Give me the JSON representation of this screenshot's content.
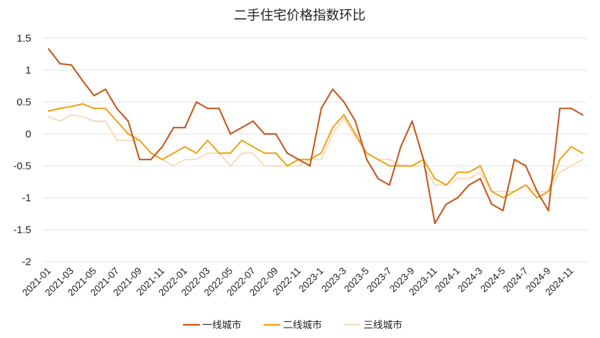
{
  "chart_data": {
    "type": "line",
    "title": "二手住宅价格指数环比",
    "xlabel": "",
    "ylabel": "",
    "ylim": [
      -2,
      1.5
    ],
    "yticks": [
      1.5,
      1,
      0.5,
      0,
      -0.5,
      -1,
      -1.5,
      -2
    ],
    "ytick_labels": [
      "1.5",
      "1",
      "0.5",
      "0",
      "-0.5",
      "-1",
      "-1.5",
      "-2"
    ],
    "grid": true,
    "legend_position": "bottom",
    "x": [
      "2021-01",
      "2021-02",
      "2021-03",
      "2021-04",
      "2021-05",
      "2021-06",
      "2021-07",
      "2021-08",
      "2021-09",
      "2021-10",
      "2021-11",
      "2021-12",
      "2022-01",
      "2022-02",
      "2022-03",
      "2022-04",
      "2022-05",
      "2022-06",
      "2022-07",
      "2022-08",
      "2022-09",
      "2022-10",
      "2022-11",
      "2022-12",
      "2023-1",
      "2023-2",
      "2023-3",
      "2023-4",
      "2023-5",
      "2023-6",
      "2023-7",
      "2023-8",
      "2023-9",
      "2023-10",
      "2023-11",
      "2023-12",
      "2024-1",
      "2024-2",
      "2024-3",
      "2024-4",
      "2024-5",
      "2024-6",
      "2024-7",
      "2024-8",
      "2024-9",
      "2024-10",
      "2024-11",
      "2024-12"
    ],
    "xtick_labels": [
      "2021-01",
      "2021-03",
      "2021-05",
      "2021-07",
      "2021-09",
      "2021-11",
      "2022-01",
      "2022-03",
      "2022-05",
      "2022-07",
      "2022-09",
      "2022-11",
      "2023-1",
      "2023-3",
      "2023-5",
      "2023-7",
      "2023-9",
      "2023-11",
      "2024-1",
      "2024-3",
      "2024-5",
      "2024-7",
      "2024-9",
      "2024-11"
    ],
    "series": [
      {
        "name": "一线城市",
        "color": "#c55a20",
        "values": [
          1.33,
          1.1,
          1.08,
          0.83,
          0.6,
          0.7,
          0.4,
          0.2,
          -0.4,
          -0.4,
          -0.2,
          0.1,
          0.1,
          0.5,
          0.4,
          0.4,
          0.0,
          0.1,
          0.2,
          0.0,
          0.0,
          -0.3,
          -0.4,
          -0.5,
          0.4,
          0.7,
          0.5,
          0.2,
          -0.4,
          -0.7,
          -0.8,
          -0.2,
          0.2,
          -0.4,
          -1.4,
          -1.1,
          -1.0,
          -0.8,
          -0.7,
          -1.1,
          -1.2,
          -0.4,
          -0.5,
          -0.9,
          -1.2,
          0.4,
          0.4,
          0.3
        ]
      },
      {
        "name": "二线城市",
        "color": "#eda61e",
        "values": [
          0.36,
          0.4,
          0.43,
          0.47,
          0.4,
          0.4,
          0.2,
          0.0,
          -0.1,
          -0.3,
          -0.4,
          -0.3,
          -0.2,
          -0.3,
          -0.1,
          -0.3,
          -0.3,
          -0.1,
          -0.2,
          -0.3,
          -0.3,
          -0.5,
          -0.4,
          -0.4,
          -0.3,
          0.1,
          0.3,
          0.0,
          -0.3,
          -0.4,
          -0.5,
          -0.5,
          -0.5,
          -0.4,
          -0.7,
          -0.8,
          -0.6,
          -0.6,
          -0.5,
          -0.9,
          -1.0,
          -0.9,
          -0.8,
          -1.0,
          -0.9,
          -0.4,
          -0.2,
          -0.3
        ]
      },
      {
        "name": "三线城市",
        "color": "#f7ddc0",
        "values": [
          0.27,
          0.2,
          0.3,
          0.27,
          0.2,
          0.2,
          -0.1,
          -0.1,
          -0.1,
          -0.3,
          -0.4,
          -0.5,
          -0.4,
          -0.4,
          -0.3,
          -0.3,
          -0.5,
          -0.3,
          -0.3,
          -0.5,
          -0.5,
          -0.5,
          -0.5,
          -0.4,
          -0.4,
          0.0,
          0.25,
          -0.05,
          -0.3,
          -0.4,
          -0.4,
          -0.5,
          -0.5,
          -0.5,
          -0.8,
          -0.8,
          -0.7,
          -0.7,
          -0.6,
          -0.9,
          -0.9,
          -0.9,
          -0.8,
          -0.9,
          -0.9,
          -0.6,
          -0.5,
          -0.4
        ]
      }
    ]
  }
}
